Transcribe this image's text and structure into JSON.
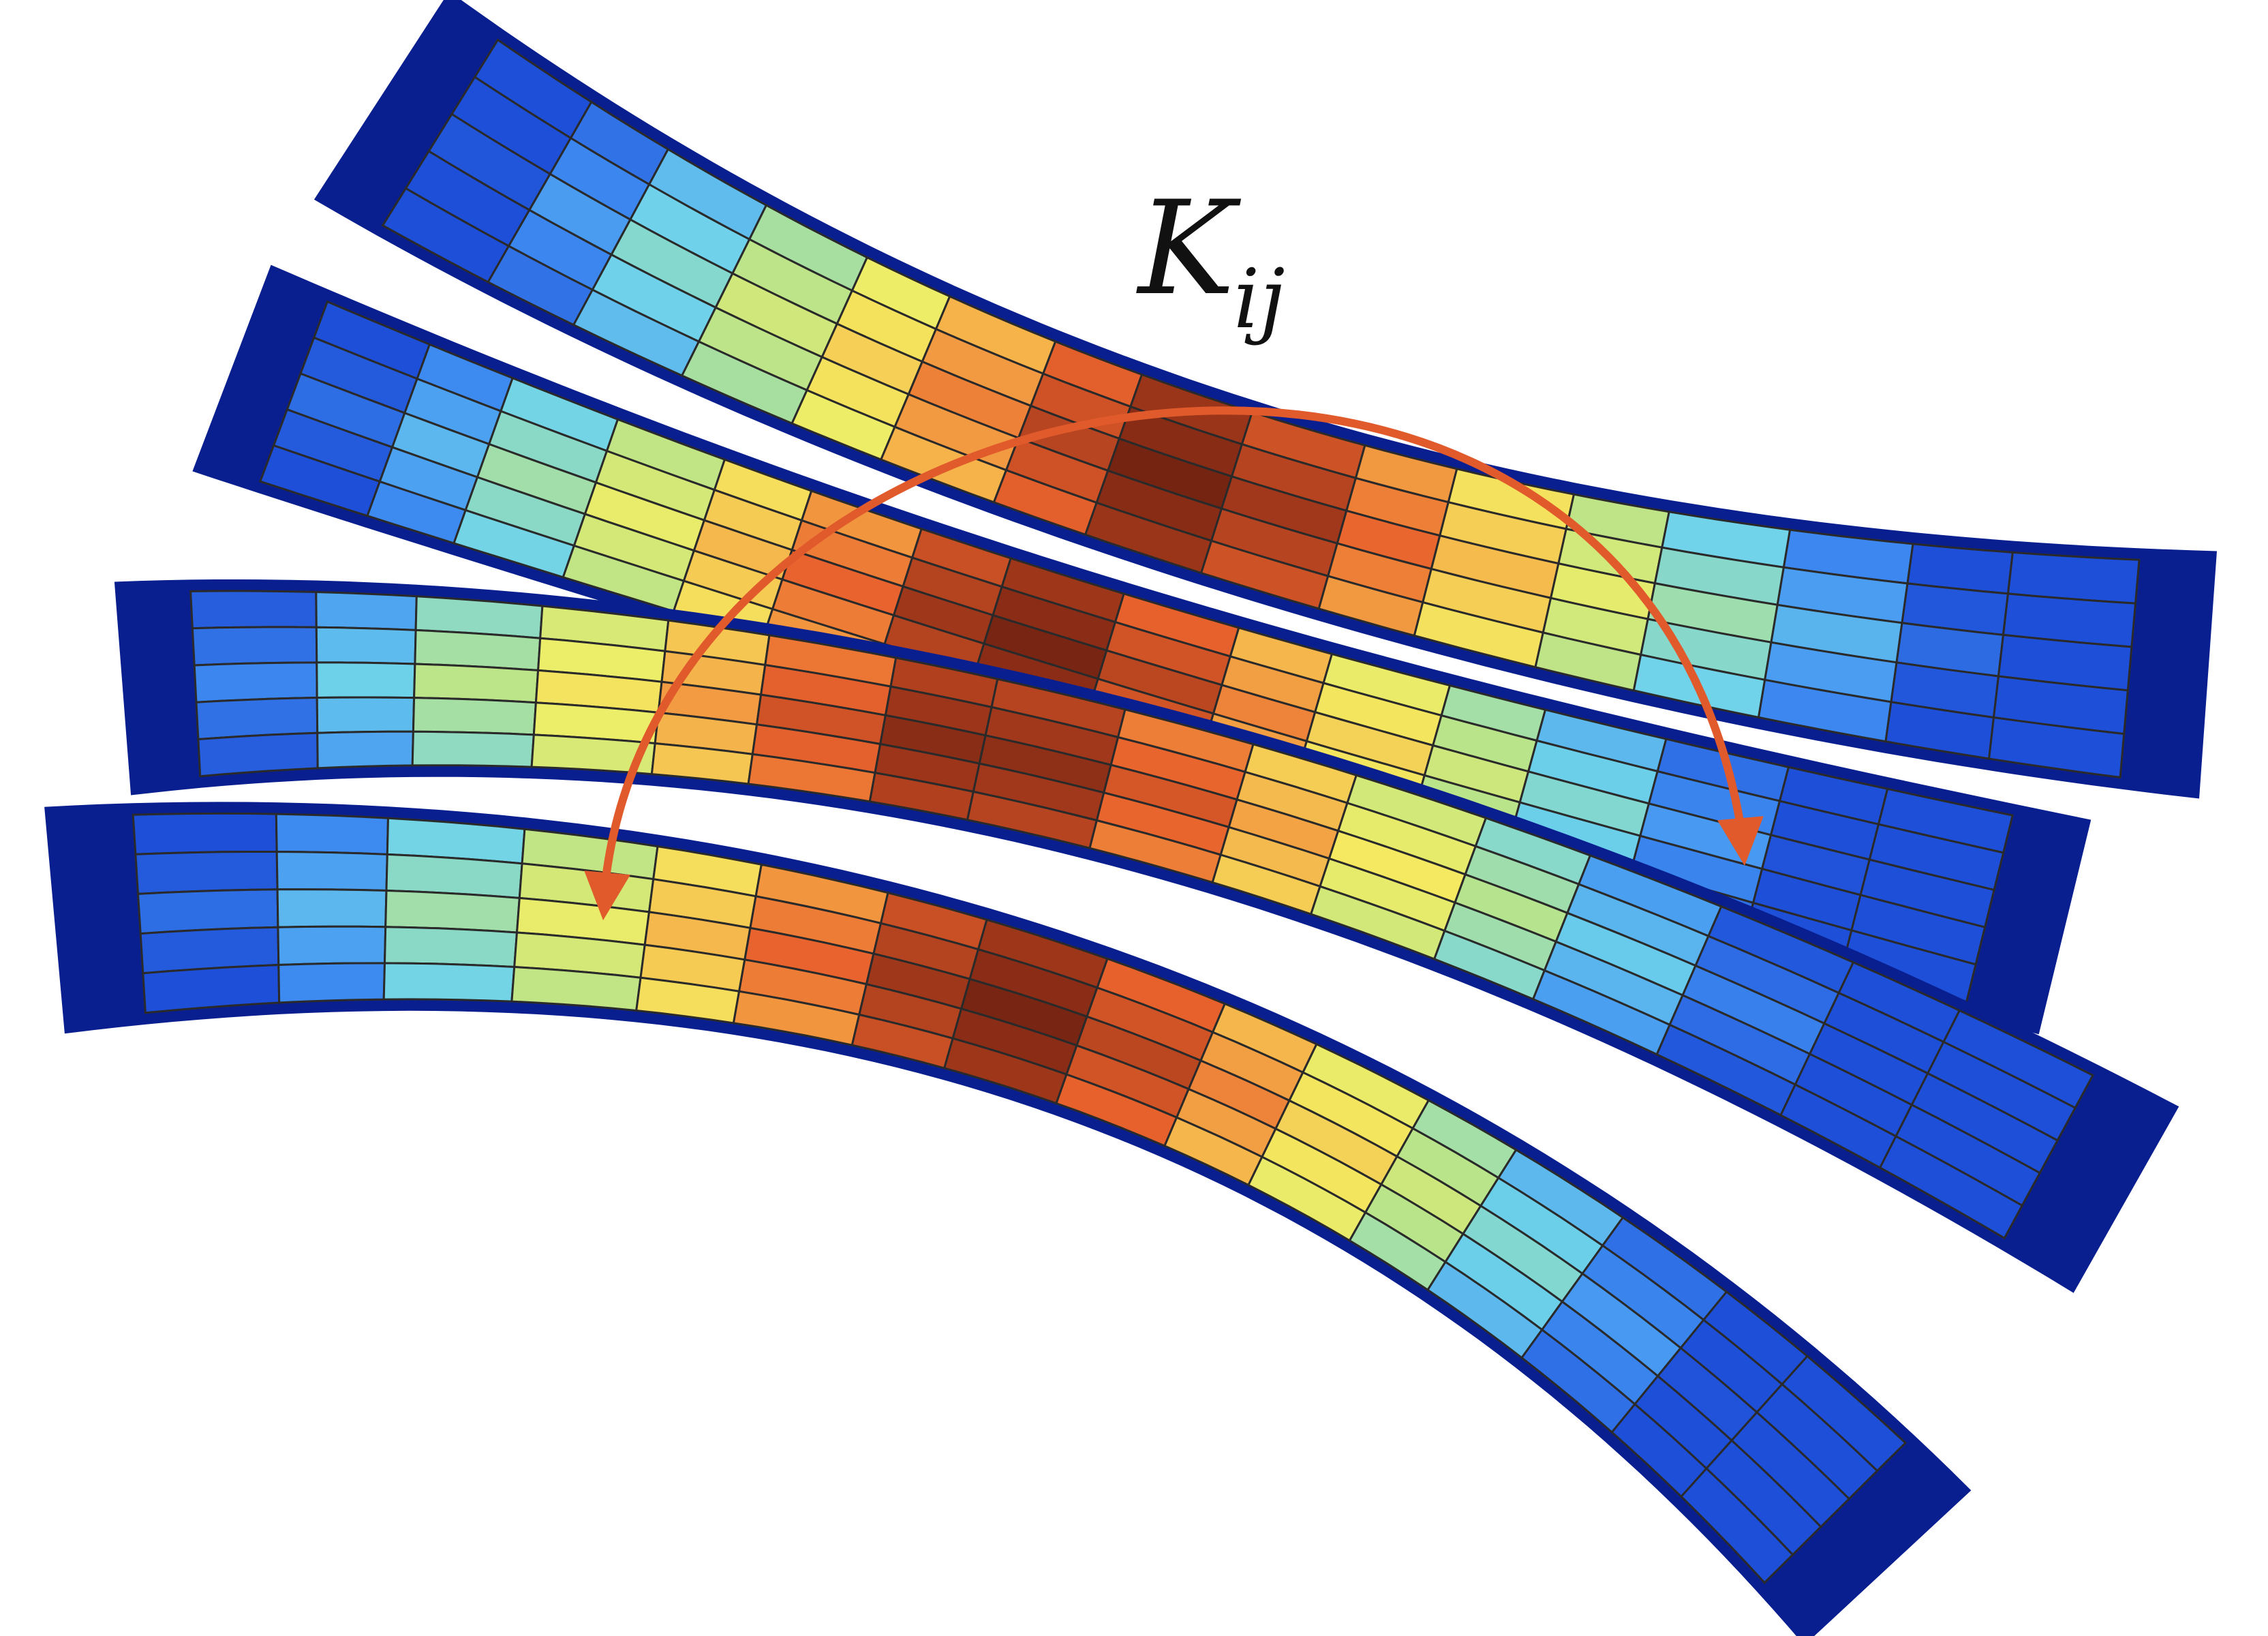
{
  "diagram": {
    "label": {
      "main": "K",
      "subscript": "ij"
    },
    "colors": {
      "frame": "#0a1f8f",
      "grid_line": "#2a2a2a",
      "arrow": "#e05a2b",
      "label": "#111111",
      "colormap": [
        "#1e4fd8",
        "#3f8ef2",
        "#6fd3ea",
        "#b7e38c",
        "#f4ee62",
        "#f5b24a",
        "#e9632d",
        "#a63a1c",
        "#6b1f10"
      ]
    },
    "ribbons": [
      {
        "name": "ribbon-top",
        "columns": 16,
        "rows": 5,
        "peak_fraction": 0.48
      },
      {
        "name": "ribbon-second",
        "columns": 16,
        "rows": 5,
        "peak_fraction": 0.46
      },
      {
        "name": "ribbon-third",
        "columns": 16,
        "rows": 5,
        "peak_fraction": 0.44
      },
      {
        "name": "ribbon-bottom",
        "columns": 16,
        "rows": 5,
        "peak_fraction": 0.46
      }
    ],
    "arrow": {
      "from": "ribbon-top",
      "to": "ribbon-bottom"
    }
  }
}
